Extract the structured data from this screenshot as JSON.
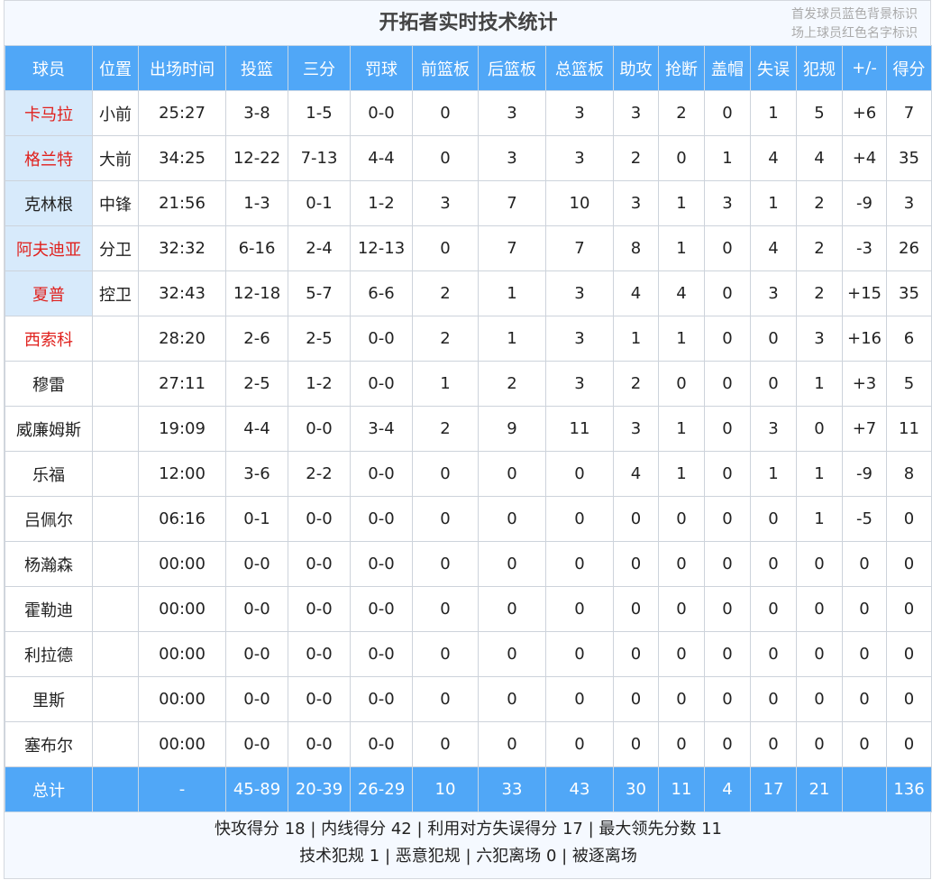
{
  "title": "开拓者实时技术统计",
  "legend": [
    "首发球员蓝色背景标识",
    "场上球员红色名字标识"
  ],
  "colors": {
    "header_bg": "#50a7f7",
    "starter_bg": "#d7eafb",
    "oncourt_name": "#e0201c"
  },
  "columns": [
    "球员",
    "位置",
    "出场时间",
    "投篮",
    "三分",
    "罚球",
    "前篮板",
    "后篮板",
    "总篮板",
    "助攻",
    "抢断",
    "盖帽",
    "失误",
    "犯规",
    "+/-",
    "得分"
  ],
  "players": [
    {
      "name": "卡马拉",
      "starter": true,
      "on_court": true,
      "cells": [
        "小前",
        "25:27",
        "3-8",
        "1-5",
        "0-0",
        "0",
        "3",
        "3",
        "3",
        "2",
        "0",
        "1",
        "5",
        "+6",
        "7"
      ]
    },
    {
      "name": "格兰特",
      "starter": true,
      "on_court": true,
      "cells": [
        "大前",
        "34:25",
        "12-22",
        "7-13",
        "4-4",
        "0",
        "3",
        "3",
        "2",
        "0",
        "1",
        "4",
        "4",
        "+4",
        "35"
      ]
    },
    {
      "name": "克林根",
      "starter": true,
      "on_court": false,
      "cells": [
        "中锋",
        "21:56",
        "1-3",
        "0-1",
        "1-2",
        "3",
        "7",
        "10",
        "3",
        "1",
        "3",
        "1",
        "2",
        "-9",
        "3"
      ]
    },
    {
      "name": "阿夫迪亚",
      "starter": true,
      "on_court": true,
      "cells": [
        "分卫",
        "32:32",
        "6-16",
        "2-4",
        "12-13",
        "0",
        "7",
        "7",
        "8",
        "1",
        "0",
        "4",
        "2",
        "-3",
        "26"
      ]
    },
    {
      "name": "夏普",
      "starter": true,
      "on_court": true,
      "cells": [
        "控卫",
        "32:43",
        "12-18",
        "5-7",
        "6-6",
        "2",
        "1",
        "3",
        "4",
        "4",
        "0",
        "3",
        "2",
        "+15",
        "35"
      ]
    },
    {
      "name": "西索科",
      "starter": false,
      "on_court": true,
      "cells": [
        "",
        "28:20",
        "2-6",
        "2-5",
        "0-0",
        "2",
        "1",
        "3",
        "1",
        "1",
        "0",
        "0",
        "3",
        "+16",
        "6"
      ]
    },
    {
      "name": "穆雷",
      "starter": false,
      "on_court": false,
      "cells": [
        "",
        "27:11",
        "2-5",
        "1-2",
        "0-0",
        "1",
        "2",
        "3",
        "2",
        "0",
        "0",
        "0",
        "1",
        "+3",
        "5"
      ]
    },
    {
      "name": "威廉姆斯",
      "starter": false,
      "on_court": false,
      "cells": [
        "",
        "19:09",
        "4-4",
        "0-0",
        "3-4",
        "2",
        "9",
        "11",
        "3",
        "1",
        "0",
        "3",
        "0",
        "+7",
        "11"
      ]
    },
    {
      "name": "乐福",
      "starter": false,
      "on_court": false,
      "cells": [
        "",
        "12:00",
        "3-6",
        "2-2",
        "0-0",
        "0",
        "0",
        "0",
        "4",
        "1",
        "0",
        "1",
        "1",
        "-9",
        "8"
      ]
    },
    {
      "name": "吕佩尔",
      "starter": false,
      "on_court": false,
      "cells": [
        "",
        "06:16",
        "0-1",
        "0-0",
        "0-0",
        "0",
        "0",
        "0",
        "0",
        "0",
        "0",
        "0",
        "1",
        "-5",
        "0"
      ]
    },
    {
      "name": "杨瀚森",
      "starter": false,
      "on_court": false,
      "cells": [
        "",
        "00:00",
        "0-0",
        "0-0",
        "0-0",
        "0",
        "0",
        "0",
        "0",
        "0",
        "0",
        "0",
        "0",
        "0",
        "0"
      ]
    },
    {
      "name": "霍勒迪",
      "starter": false,
      "on_court": false,
      "cells": [
        "",
        "00:00",
        "0-0",
        "0-0",
        "0-0",
        "0",
        "0",
        "0",
        "0",
        "0",
        "0",
        "0",
        "0",
        "0",
        "0"
      ]
    },
    {
      "name": "利拉德",
      "starter": false,
      "on_court": false,
      "cells": [
        "",
        "00:00",
        "0-0",
        "0-0",
        "0-0",
        "0",
        "0",
        "0",
        "0",
        "0",
        "0",
        "0",
        "0",
        "0",
        "0"
      ]
    },
    {
      "name": "里斯",
      "starter": false,
      "on_court": false,
      "cells": [
        "",
        "00:00",
        "0-0",
        "0-0",
        "0-0",
        "0",
        "0",
        "0",
        "0",
        "0",
        "0",
        "0",
        "0",
        "0",
        "0"
      ]
    },
    {
      "name": "塞布尔",
      "starter": false,
      "on_court": false,
      "cells": [
        "",
        "00:00",
        "0-0",
        "0-0",
        "0-0",
        "0",
        "0",
        "0",
        "0",
        "0",
        "0",
        "0",
        "0",
        "0",
        "0"
      ]
    }
  ],
  "total": {
    "label": "总计",
    "cells": [
      "",
      "-",
      "45-89",
      "20-39",
      "26-29",
      "10",
      "33",
      "43",
      "30",
      "11",
      "4",
      "17",
      "21",
      "",
      "136"
    ]
  },
  "footer": [
    "快攻得分 18 | 内线得分 42 | 利用对方失误得分 17 | 最大领先分数 11",
    "技术犯规 1 | 恶意犯规  | 六犯离场 0 | 被逐离场"
  ]
}
